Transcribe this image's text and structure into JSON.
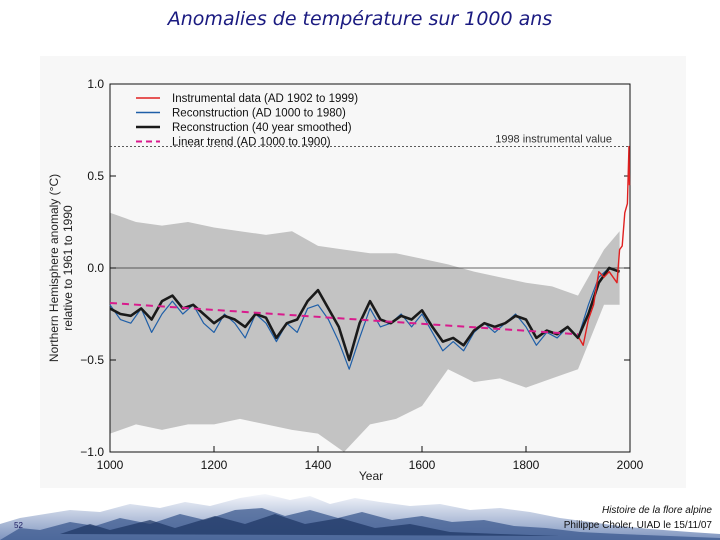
{
  "slide": {
    "title": "Anomalies de température sur 1000 ans",
    "number": "52",
    "footer_line1": "Histoire de la flore alpine",
    "footer_line2": "Philippe Choler, UIAD le 15/11/07"
  },
  "chart_data": {
    "type": "line",
    "title": "",
    "xlabel": "Year",
    "ylabel": "Northern Hemisphere anomaly (°C) relative to 1961 to 1990",
    "xlim": [
      1000,
      2000
    ],
    "ylim": [
      -1.0,
      1.0
    ],
    "xticks": [
      1000,
      1200,
      1400,
      1600,
      1800,
      2000
    ],
    "yticks": [
      -1.0,
      -0.5,
      0.0,
      0.5,
      1.0
    ],
    "ytick_labels": [
      "−1.0",
      "−0.5",
      "0.0",
      "0.5",
      "1.0"
    ],
    "grid": false,
    "legend_position": "top-left",
    "reference_line": {
      "label": "1998 instrumental value",
      "y": 0.66
    },
    "zero_line": 0.0,
    "uncertainty_band": {
      "color": "#bdbdbd",
      "x": [
        1000,
        1050,
        1100,
        1150,
        1200,
        1250,
        1300,
        1350,
        1400,
        1450,
        1500,
        1550,
        1600,
        1650,
        1700,
        1750,
        1800,
        1850,
        1900,
        1950,
        1980
      ],
      "upper": [
        0.3,
        0.25,
        0.23,
        0.25,
        0.22,
        0.2,
        0.18,
        0.2,
        0.12,
        0.1,
        0.08,
        0.08,
        0.05,
        0.02,
        -0.02,
        -0.05,
        -0.08,
        -0.1,
        -0.15,
        0.1,
        0.2
      ],
      "lower": [
        -0.9,
        -0.85,
        -0.88,
        -0.85,
        -0.85,
        -0.82,
        -0.85,
        -0.88,
        -0.9,
        -1.0,
        -0.85,
        -0.82,
        -0.75,
        -0.55,
        -0.62,
        -0.6,
        -0.65,
        -0.6,
        -0.55,
        -0.2,
        -0.2
      ]
    },
    "series": [
      {
        "name": "Reconstruction (AD 1000 to 1980)",
        "color": "#1f5fa8",
        "x": [
          1000,
          1020,
          1040,
          1060,
          1080,
          1100,
          1120,
          1140,
          1160,
          1180,
          1200,
          1220,
          1240,
          1260,
          1280,
          1300,
          1320,
          1340,
          1360,
          1380,
          1400,
          1420,
          1440,
          1460,
          1480,
          1500,
          1520,
          1540,
          1560,
          1580,
          1600,
          1620,
          1640,
          1660,
          1680,
          1700,
          1720,
          1740,
          1760,
          1780,
          1800,
          1820,
          1840,
          1860,
          1880,
          1900,
          1920,
          1940,
          1960,
          1980
        ],
        "values": [
          -0.2,
          -0.28,
          -0.3,
          -0.22,
          -0.35,
          -0.25,
          -0.18,
          -0.25,
          -0.2,
          -0.3,
          -0.35,
          -0.25,
          -0.3,
          -0.38,
          -0.25,
          -0.3,
          -0.4,
          -0.3,
          -0.35,
          -0.22,
          -0.2,
          -0.28,
          -0.4,
          -0.55,
          -0.38,
          -0.22,
          -0.32,
          -0.3,
          -0.25,
          -0.32,
          -0.25,
          -0.35,
          -0.45,
          -0.4,
          -0.45,
          -0.35,
          -0.3,
          -0.35,
          -0.3,
          -0.25,
          -0.32,
          -0.42,
          -0.35,
          -0.38,
          -0.32,
          -0.38,
          -0.2,
          -0.05,
          0.0,
          -0.02
        ]
      },
      {
        "name": "Reconstruction (40 year smoothed)",
        "color": "#1a1a1a",
        "x": [
          1000,
          1020,
          1040,
          1060,
          1080,
          1100,
          1120,
          1140,
          1160,
          1180,
          1200,
          1220,
          1240,
          1260,
          1280,
          1300,
          1320,
          1340,
          1360,
          1380,
          1400,
          1420,
          1440,
          1460,
          1480,
          1500,
          1520,
          1540,
          1560,
          1580,
          1600,
          1620,
          1640,
          1660,
          1680,
          1700,
          1720,
          1740,
          1760,
          1780,
          1800,
          1820,
          1840,
          1860,
          1880,
          1900,
          1920,
          1940,
          1960,
          1980
        ],
        "values": [
          -0.22,
          -0.25,
          -0.26,
          -0.22,
          -0.28,
          -0.18,
          -0.15,
          -0.22,
          -0.2,
          -0.25,
          -0.3,
          -0.26,
          -0.28,
          -0.32,
          -0.25,
          -0.27,
          -0.38,
          -0.3,
          -0.28,
          -0.18,
          -0.12,
          -0.22,
          -0.32,
          -0.5,
          -0.3,
          -0.18,
          -0.28,
          -0.3,
          -0.26,
          -0.28,
          -0.23,
          -0.32,
          -0.4,
          -0.38,
          -0.42,
          -0.34,
          -0.3,
          -0.32,
          -0.3,
          -0.26,
          -0.28,
          -0.38,
          -0.34,
          -0.36,
          -0.32,
          -0.38,
          -0.25,
          -0.08,
          0.0,
          -0.02
        ]
      },
      {
        "name": "Linear trend (AD 1000 to 1900)",
        "color": "#d81b8c",
        "x": [
          1000,
          1900
        ],
        "values": [
          -0.19,
          -0.36
        ]
      },
      {
        "name": "Instrumental data (AD 1902 to 1999)",
        "color": "#e02020",
        "x": [
          1902,
          1910,
          1920,
          1930,
          1940,
          1950,
          1960,
          1970,
          1975,
          1980,
          1985,
          1990,
          1995,
          1998,
          1999
        ],
        "values": [
          -0.38,
          -0.42,
          -0.28,
          -0.2,
          -0.02,
          -0.05,
          -0.02,
          -0.06,
          -0.08,
          0.1,
          0.12,
          0.3,
          0.35,
          0.66,
          0.45
        ]
      }
    ]
  }
}
